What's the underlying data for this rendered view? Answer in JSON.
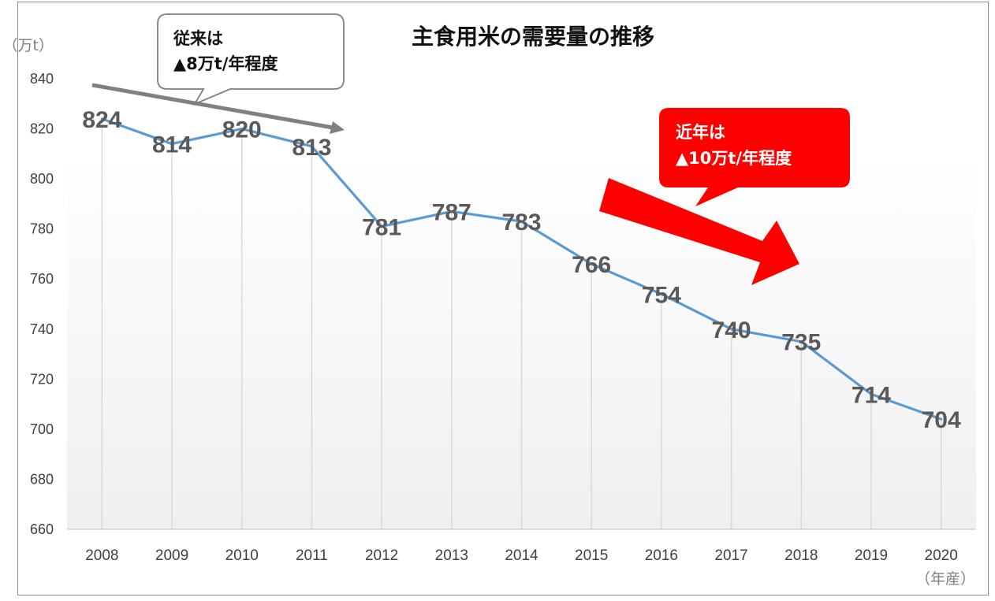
{
  "chart_data": {
    "type": "line",
    "title": "主食用米の需要量の推移",
    "y_unit": "（万t）",
    "x_unit": "（年産）",
    "categories": [
      "2008",
      "2009",
      "2010",
      "2011",
      "2012",
      "2013",
      "2014",
      "2015",
      "2016",
      "2017",
      "2018",
      "2019",
      "2020"
    ],
    "values": [
      824,
      814,
      820,
      813,
      781,
      787,
      783,
      766,
      754,
      740,
      735,
      714,
      704
    ],
    "ylim": [
      660,
      840
    ],
    "yticks": [
      660,
      680,
      700,
      720,
      740,
      760,
      780,
      800,
      820,
      840
    ],
    "grid": "vertical",
    "legend": "none"
  },
  "colors": {
    "line": "#5b9bd5",
    "grey_arrow": "#808080",
    "red_arrow": "#ff0000",
    "grid": "#d9d9d9",
    "label": "#595959"
  },
  "callouts": {
    "past": {
      "line1": "従来は",
      "line2": "▲8万t/年程度"
    },
    "recent": {
      "line1": "近年は",
      "line2": "▲10万t/年程度"
    }
  }
}
